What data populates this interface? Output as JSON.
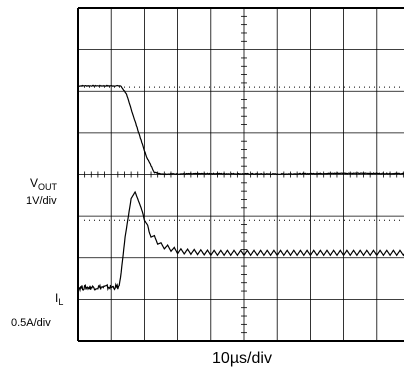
{
  "chart_data": {
    "type": "line",
    "grid": true,
    "x_divisions": 10,
    "y_divisions": 8,
    "x_scale_label": "10µs/div",
    "channels": [
      {
        "name_main": "V",
        "name_sub": "OUT",
        "scale": "1V/div",
        "y_unit": "div",
        "x_unit": "div",
        "samples": [
          {
            "x": 0.0,
            "y": 6.13
          },
          {
            "x": 1.28,
            "y": 6.13
          },
          {
            "x": 1.45,
            "y": 5.95
          },
          {
            "x": 1.75,
            "y": 5.2
          },
          {
            "x": 2.05,
            "y": 4.45
          },
          {
            "x": 2.3,
            "y": 4.05
          },
          {
            "x": 2.55,
            "y": 4.01
          },
          {
            "x": 4.0,
            "y": 4.02
          },
          {
            "x": 6.0,
            "y": 4.01
          },
          {
            "x": 8.0,
            "y": 4.03
          },
          {
            "x": 10.0,
            "y": 4.02
          }
        ]
      },
      {
        "name_main": "I",
        "name_sub": "L",
        "scale": "0.5A/div",
        "y_unit": "div",
        "x_unit": "div",
        "ripple_amplitude": 0.12,
        "ripple_period": 0.2,
        "samples": [
          {
            "x": 0.0,
            "y": 1.28
          },
          {
            "x": 1.25,
            "y": 1.3
          },
          {
            "x": 1.42,
            "y": 2.5
          },
          {
            "x": 1.6,
            "y": 3.42
          },
          {
            "x": 1.72,
            "y": 3.58
          },
          {
            "x": 1.9,
            "y": 3.2
          },
          {
            "x": 2.15,
            "y": 2.6
          },
          {
            "x": 2.5,
            "y": 2.3
          },
          {
            "x": 3.0,
            "y": 2.16
          },
          {
            "x": 4.0,
            "y": 2.12
          },
          {
            "x": 10.0,
            "y": 2.12
          }
        ]
      }
    ]
  }
}
